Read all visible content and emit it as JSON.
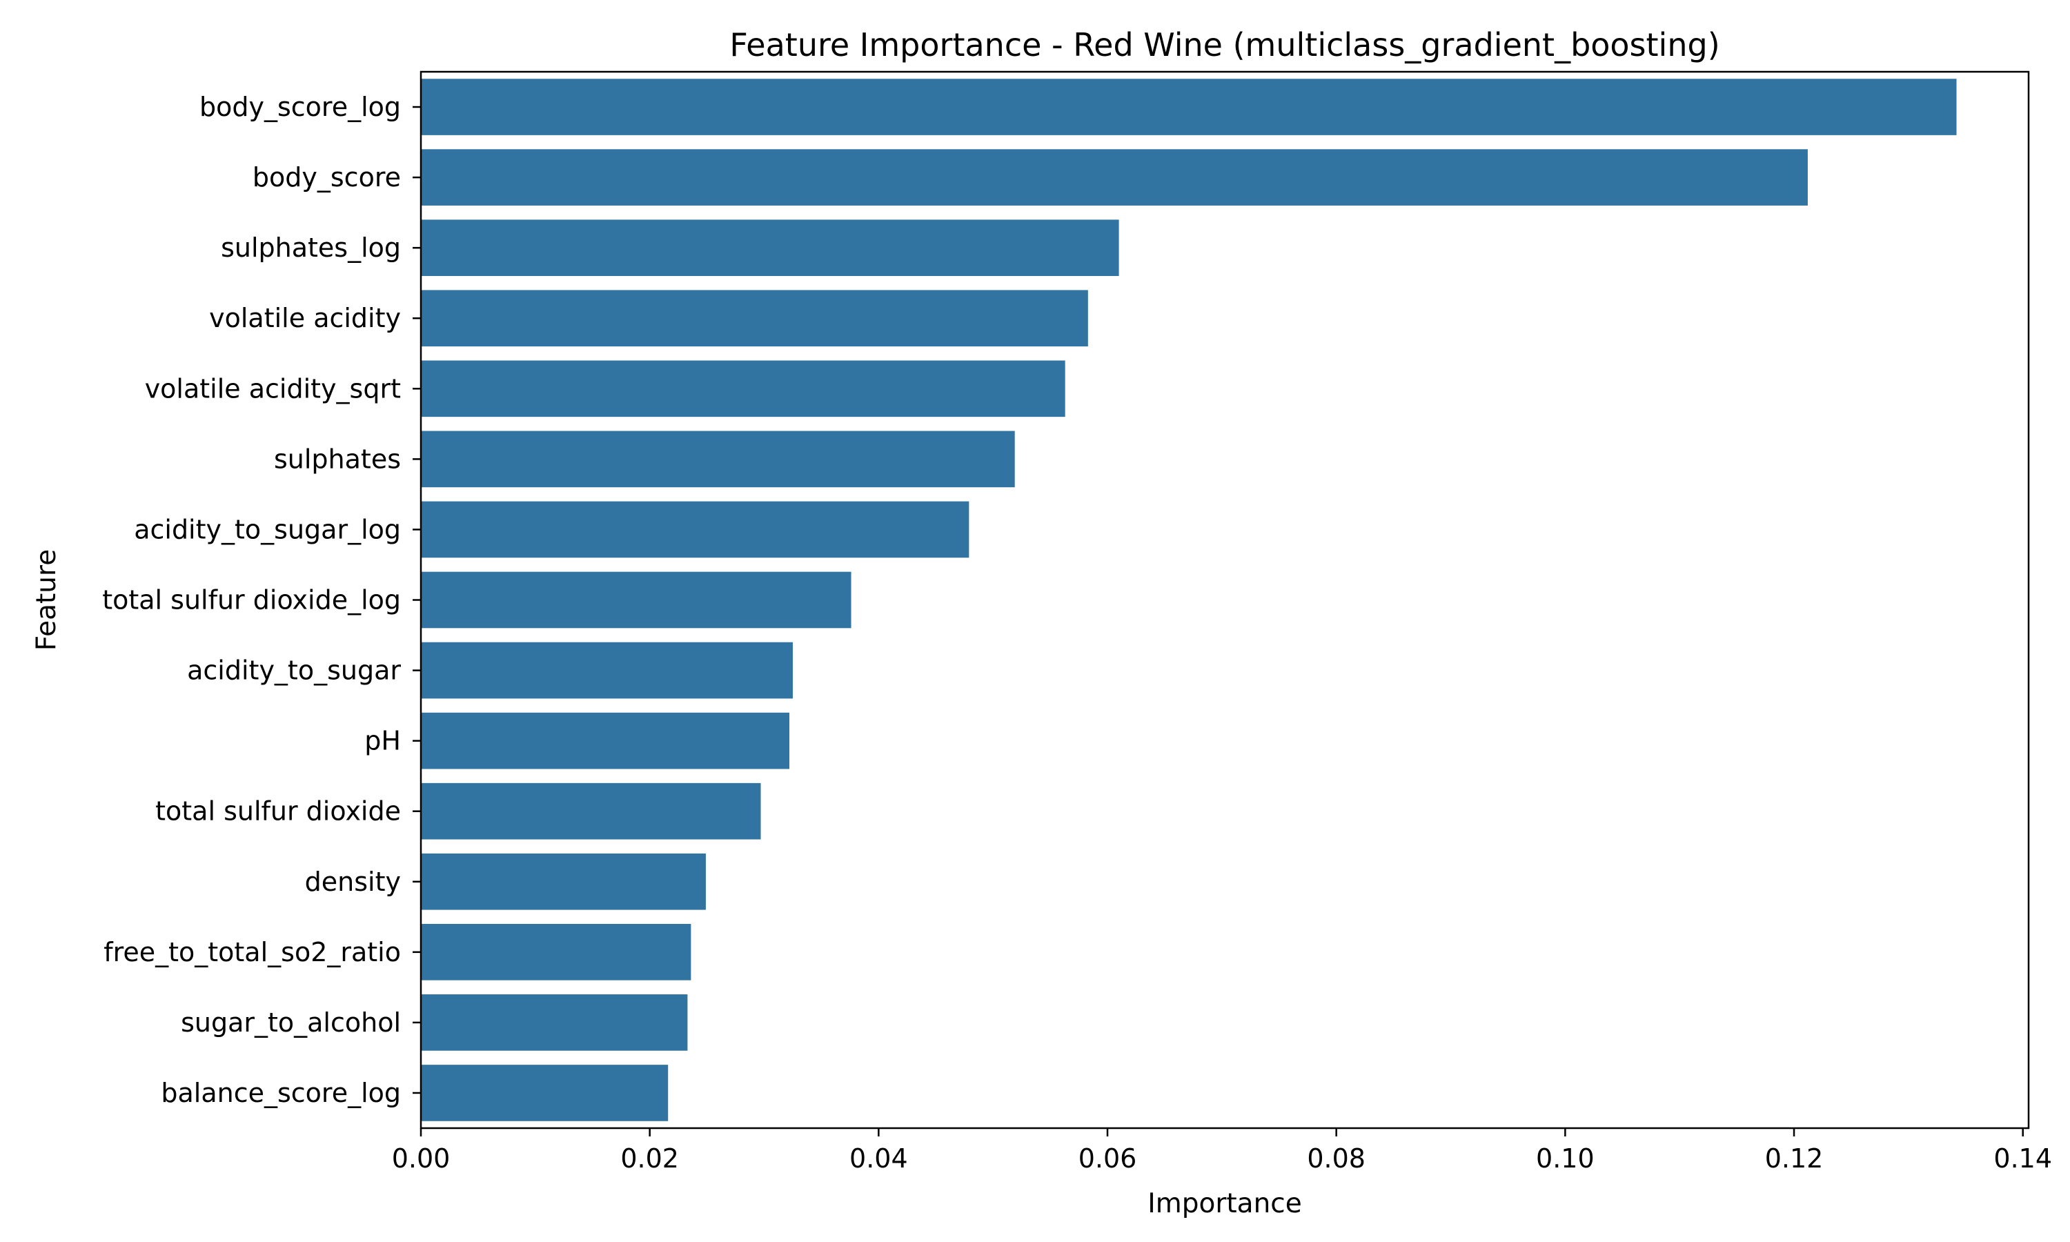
{
  "chart_data": {
    "type": "bar",
    "orientation": "horizontal",
    "title": "Feature Importance - Red Wine (multiclass_gradient_boosting)",
    "xlabel": "Importance",
    "ylabel": "Feature",
    "xlim": [
      0,
      0.1405
    ],
    "xticks": [
      0.0,
      0.02,
      0.04,
      0.06,
      0.08,
      0.1,
      0.12,
      0.14
    ],
    "xtick_labels": [
      "0.00",
      "0.02",
      "0.04",
      "0.06",
      "0.08",
      "0.10",
      "0.12",
      "0.14"
    ],
    "grid": false,
    "legend": "none",
    "bar_color": "#3274a1",
    "categories": [
      "body_score_log",
      "body_score",
      "sulphates_log",
      "volatile acidity",
      "volatile acidity_sqrt",
      "sulphates",
      "acidity_to_sugar_log",
      "total sulfur dioxide_log",
      "acidity_to_sugar",
      "pH",
      "total sulfur dioxide",
      "density",
      "free_to_total_so2_ratio",
      "sugar_to_alcohol",
      "balance_score_log"
    ],
    "values": [
      0.1342,
      0.1212,
      0.061,
      0.0583,
      0.0563,
      0.0519,
      0.0479,
      0.0376,
      0.0325,
      0.0322,
      0.0297,
      0.0249,
      0.0236,
      0.0233,
      0.0216
    ]
  }
}
